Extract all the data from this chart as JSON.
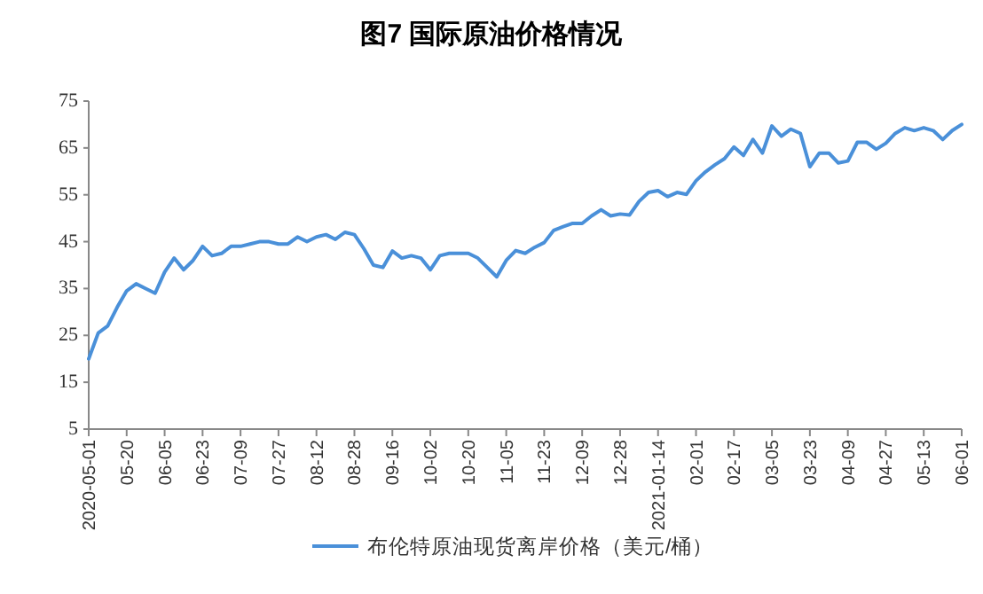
{
  "chart_data": {
    "type": "line",
    "title": "图7  国际原油价格情况",
    "categories": [
      "2020-05-01",
      null,
      null,
      null,
      "05-20",
      null,
      null,
      null,
      "06-05",
      null,
      null,
      null,
      "06-23",
      null,
      null,
      null,
      "07-09",
      null,
      null,
      null,
      "07-27",
      null,
      null,
      null,
      "08-12",
      null,
      null,
      null,
      "08-28",
      null,
      null,
      null,
      "09-16",
      null,
      null,
      null,
      "10-02",
      null,
      null,
      null,
      "10-20",
      null,
      null,
      null,
      "11-05",
      null,
      null,
      null,
      "11-23",
      null,
      null,
      null,
      "12-09",
      null,
      null,
      null,
      "12-28",
      null,
      null,
      null,
      "2021-01-14",
      null,
      null,
      null,
      "02-01",
      null,
      null,
      null,
      "02-17",
      null,
      null,
      null,
      "03-05",
      null,
      null,
      null,
      "03-23",
      null,
      null,
      null,
      "04-09",
      null,
      null,
      null,
      "04-27",
      null,
      null,
      null,
      "05-13",
      null,
      null,
      null,
      "06-01"
    ],
    "series": [
      {
        "name": "布伦特原油现货离岸价格（美元/桶）",
        "color": "#4a90d9",
        "values": [
          20,
          25.5,
          27,
          31,
          34.5,
          36,
          35,
          34,
          38.5,
          41.5,
          39,
          41,
          44,
          42,
          42.5,
          44,
          44,
          44.5,
          45,
          45,
          44.5,
          44.5,
          46,
          45,
          46,
          46.5,
          45.5,
          47,
          46.5,
          43.5,
          40,
          39.5,
          43,
          41.5,
          42,
          41.5,
          39,
          42,
          42.5,
          42.5,
          42.5,
          41.5,
          39.5,
          37.5,
          41,
          43.1,
          42.5,
          43.8,
          44.8,
          47.4,
          48.2,
          48.9,
          48.9,
          50.5,
          51.8,
          50.5,
          50.9,
          50.7,
          53.6,
          55.5,
          55.9,
          54.6,
          55.5,
          55.1,
          58,
          59.9,
          61.4,
          62.7,
          65.2,
          63.4,
          66.8,
          63.9,
          69.7,
          67.5,
          69,
          68.1,
          61,
          63.9,
          63.9,
          61.8,
          62.2,
          66.2,
          66.2,
          64.7,
          66,
          68.1,
          69.3,
          68.7,
          69.3,
          68.7,
          66.8,
          68.7,
          70
        ]
      }
    ],
    "ylim": [
      5,
      75
    ],
    "yticks": [
      5,
      15,
      25,
      35,
      45,
      55,
      65,
      75
    ],
    "grid": false,
    "legend": "bottom",
    "marker": "none",
    "line_style": "solid"
  }
}
